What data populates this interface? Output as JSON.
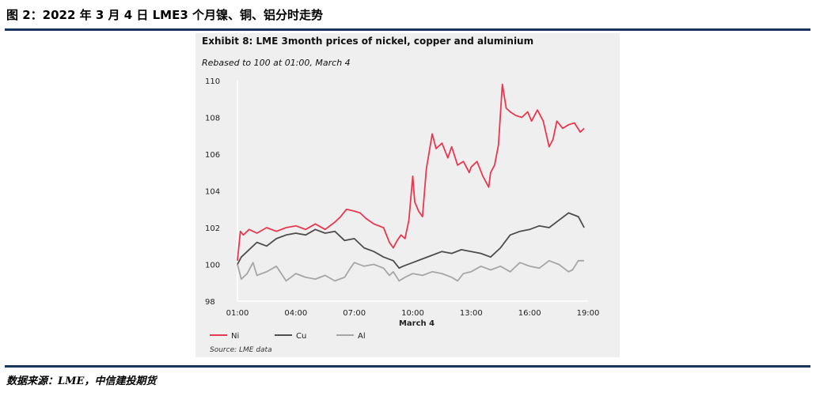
{
  "figure_title": "图 2：2022 年 3 月 4 日 LME3 个月镍、铜、铝分时走势",
  "source_note": "数据来源：LME，中信建投期货",
  "chart_data": {
    "type": "line",
    "title": "Exhibit 8: LME 3month prices of nickel, copper and aluminium",
    "subtitle": "Rebased to 100 at 01:00, March 4",
    "xlabel": "March 4",
    "ylabel": "",
    "source": "Source: LME data",
    "x_tick_labels": [
      "01:00",
      "04:00",
      "07:00",
      "10:00",
      "13:00",
      "16:00",
      "19:00"
    ],
    "y_ticks": [
      98,
      100,
      102,
      104,
      106,
      108,
      110
    ],
    "ylim": [
      98,
      110
    ],
    "xlim": [
      1,
      19
    ],
    "grid": false,
    "legend_position": "bottom-left",
    "series": [
      {
        "name": "Ni",
        "color": "#e8384f",
        "x": [
          1.0,
          1.15,
          1.3,
          1.6,
          2.0,
          2.5,
          3.0,
          3.5,
          4.0,
          4.5,
          5.0,
          5.5,
          6.0,
          6.3,
          6.6,
          7.0,
          7.3,
          7.6,
          8.0,
          8.5,
          8.8,
          9.0,
          9.2,
          9.4,
          9.6,
          9.8,
          10.0,
          10.1,
          10.3,
          10.5,
          10.7,
          11.0,
          11.2,
          11.5,
          11.8,
          12.0,
          12.3,
          12.6,
          12.9,
          13.0,
          13.3,
          13.6,
          13.9,
          14.0,
          14.2,
          14.4,
          14.6,
          14.8,
          15.0,
          15.3,
          15.6,
          15.9,
          16.1,
          16.4,
          16.7,
          17.0,
          17.2,
          17.4,
          17.7,
          18.0,
          18.3,
          18.6,
          18.8
        ],
        "values": [
          100.2,
          101.8,
          101.6,
          101.9,
          101.7,
          102.0,
          101.8,
          102.0,
          102.1,
          101.9,
          102.2,
          101.9,
          102.3,
          102.6,
          103.0,
          102.9,
          102.8,
          102.5,
          102.2,
          102.0,
          101.2,
          100.9,
          101.3,
          101.6,
          101.4,
          102.4,
          104.8,
          103.4,
          102.9,
          102.6,
          105.2,
          107.1,
          106.3,
          106.6,
          105.8,
          106.4,
          105.4,
          105.6,
          105.0,
          105.3,
          105.6,
          104.8,
          104.2,
          105.0,
          105.4,
          106.5,
          109.8,
          108.5,
          108.3,
          108.1,
          108.0,
          108.3,
          107.8,
          108.4,
          107.8,
          106.4,
          106.8,
          107.8,
          107.4,
          107.6,
          107.7,
          107.2,
          107.4
        ]
      },
      {
        "name": "Cu",
        "color": "#4d4d4d",
        "x": [
          1.0,
          1.2,
          1.5,
          2.0,
          2.5,
          3.0,
          3.5,
          4.0,
          4.5,
          5.0,
          5.5,
          6.0,
          6.5,
          7.0,
          7.5,
          8.0,
          8.5,
          9.0,
          9.3,
          9.5,
          10.0,
          10.5,
          11.0,
          11.5,
          12.0,
          12.5,
          13.0,
          13.5,
          14.0,
          14.5,
          15.0,
          15.5,
          16.0,
          16.5,
          17.0,
          17.5,
          18.0,
          18.5,
          18.8
        ],
        "values": [
          100.0,
          100.4,
          100.7,
          101.2,
          101.0,
          101.4,
          101.6,
          101.7,
          101.6,
          101.9,
          101.7,
          101.8,
          101.3,
          101.4,
          100.9,
          100.7,
          100.4,
          100.2,
          99.8,
          99.9,
          100.1,
          100.3,
          100.5,
          100.7,
          100.6,
          100.8,
          100.7,
          100.6,
          100.4,
          100.9,
          101.6,
          101.8,
          101.9,
          102.1,
          102.0,
          102.4,
          102.8,
          102.6,
          102.0
        ]
      },
      {
        "name": "Al",
        "color": "#a6a6a6",
        "x": [
          1.0,
          1.2,
          1.5,
          1.8,
          2.0,
          2.5,
          3.0,
          3.5,
          4.0,
          4.5,
          5.0,
          5.5,
          6.0,
          6.5,
          6.8,
          7.0,
          7.5,
          8.0,
          8.5,
          8.8,
          9.0,
          9.3,
          9.6,
          10.0,
          10.5,
          11.0,
          11.5,
          12.0,
          12.3,
          12.6,
          13.0,
          13.5,
          14.0,
          14.5,
          15.0,
          15.5,
          16.0,
          16.5,
          17.0,
          17.5,
          18.0,
          18.2,
          18.5,
          18.8
        ],
        "values": [
          100.0,
          99.2,
          99.5,
          100.1,
          99.4,
          99.6,
          99.9,
          99.1,
          99.5,
          99.3,
          99.2,
          99.4,
          99.1,
          99.3,
          99.8,
          100.1,
          99.9,
          100.0,
          99.8,
          99.4,
          99.6,
          99.1,
          99.3,
          99.5,
          99.4,
          99.6,
          99.5,
          99.3,
          99.1,
          99.5,
          99.6,
          99.9,
          99.7,
          99.9,
          99.6,
          100.1,
          99.9,
          99.8,
          100.2,
          100.0,
          99.6,
          99.7,
          100.2,
          100.2
        ]
      }
    ]
  }
}
